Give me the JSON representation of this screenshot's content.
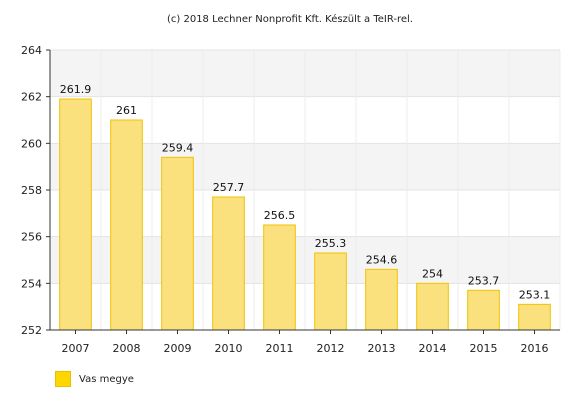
{
  "credit": "(c) 2018 Lechner Nonprofit Kft. Készült a TeIR-rel.",
  "chart_data": {
    "type": "bar",
    "categories": [
      "2007",
      "2008",
      "2009",
      "2010",
      "2011",
      "2012",
      "2013",
      "2014",
      "2015",
      "2016"
    ],
    "series": [
      {
        "name": "Vas megye",
        "values": [
          261.9,
          261,
          259.4,
          257.7,
          256.5,
          255.3,
          254.6,
          254,
          253.7,
          253.1
        ],
        "labels": [
          "261.9",
          "261",
          "259.4",
          "257.7",
          "256.5",
          "255.3",
          "254.6",
          "254",
          "253.7",
          "253.1"
        ]
      }
    ],
    "ylim": [
      252,
      264
    ],
    "yticks": [
      252,
      254,
      256,
      258,
      260,
      262,
      264
    ],
    "grid": true,
    "legend": "bottom-left",
    "colors": {
      "bar_fill": "#FAE17E",
      "bar_stroke": "#F2C200",
      "legend_swatch": "#FFD700",
      "band": "#F4F4F4"
    }
  }
}
